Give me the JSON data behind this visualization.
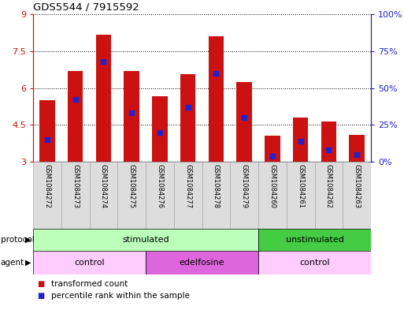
{
  "title": "GDS5544 / 7915592",
  "samples": [
    "GSM1084272",
    "GSM1084273",
    "GSM1084274",
    "GSM1084275",
    "GSM1084276",
    "GSM1084277",
    "GSM1084278",
    "GSM1084279",
    "GSM1084260",
    "GSM1084261",
    "GSM1084262",
    "GSM1084263"
  ],
  "bar_values": [
    5.5,
    6.7,
    8.15,
    6.7,
    5.65,
    6.55,
    8.1,
    6.25,
    4.05,
    4.8,
    4.65,
    4.1
  ],
  "percentile_values": [
    15,
    42,
    68,
    33,
    20,
    37,
    60,
    30,
    4,
    14,
    8,
    5
  ],
  "ylim_left": [
    3,
    9
  ],
  "ylim_right": [
    0,
    100
  ],
  "yticks_left": [
    3,
    4.5,
    6,
    7.5,
    9
  ],
  "ytick_labels_left": [
    "3",
    "4.5",
    "6",
    "7.5",
    "9"
  ],
  "yticks_right": [
    0,
    25,
    50,
    75,
    100
  ],
  "ytick_labels_right": [
    "0%",
    "25%",
    "50%",
    "75%",
    "100%"
  ],
  "bar_color": "#cc1111",
  "blue_marker_color": "#2222cc",
  "protocol_groups": [
    {
      "label": "stimulated",
      "start": 0,
      "end": 8,
      "color": "#bbffbb"
    },
    {
      "label": "unstimulated",
      "start": 8,
      "end": 12,
      "color": "#44cc44"
    }
  ],
  "agent_groups": [
    {
      "label": "control",
      "start": 0,
      "end": 4,
      "color": "#ffccff"
    },
    {
      "label": "edelfosine",
      "start": 4,
      "end": 8,
      "color": "#dd66dd"
    },
    {
      "label": "control",
      "start": 8,
      "end": 12,
      "color": "#ffccff"
    }
  ],
  "legend_items": [
    {
      "label": "transformed count",
      "color": "#cc1111"
    },
    {
      "label": "percentile rank within the sample",
      "color": "#2222cc"
    }
  ],
  "left_tick_color": "#cc1111",
  "right_tick_color": "#2222cc",
  "sample_bg_color": "#dddddd",
  "sample_edge_color": "#aaaaaa"
}
